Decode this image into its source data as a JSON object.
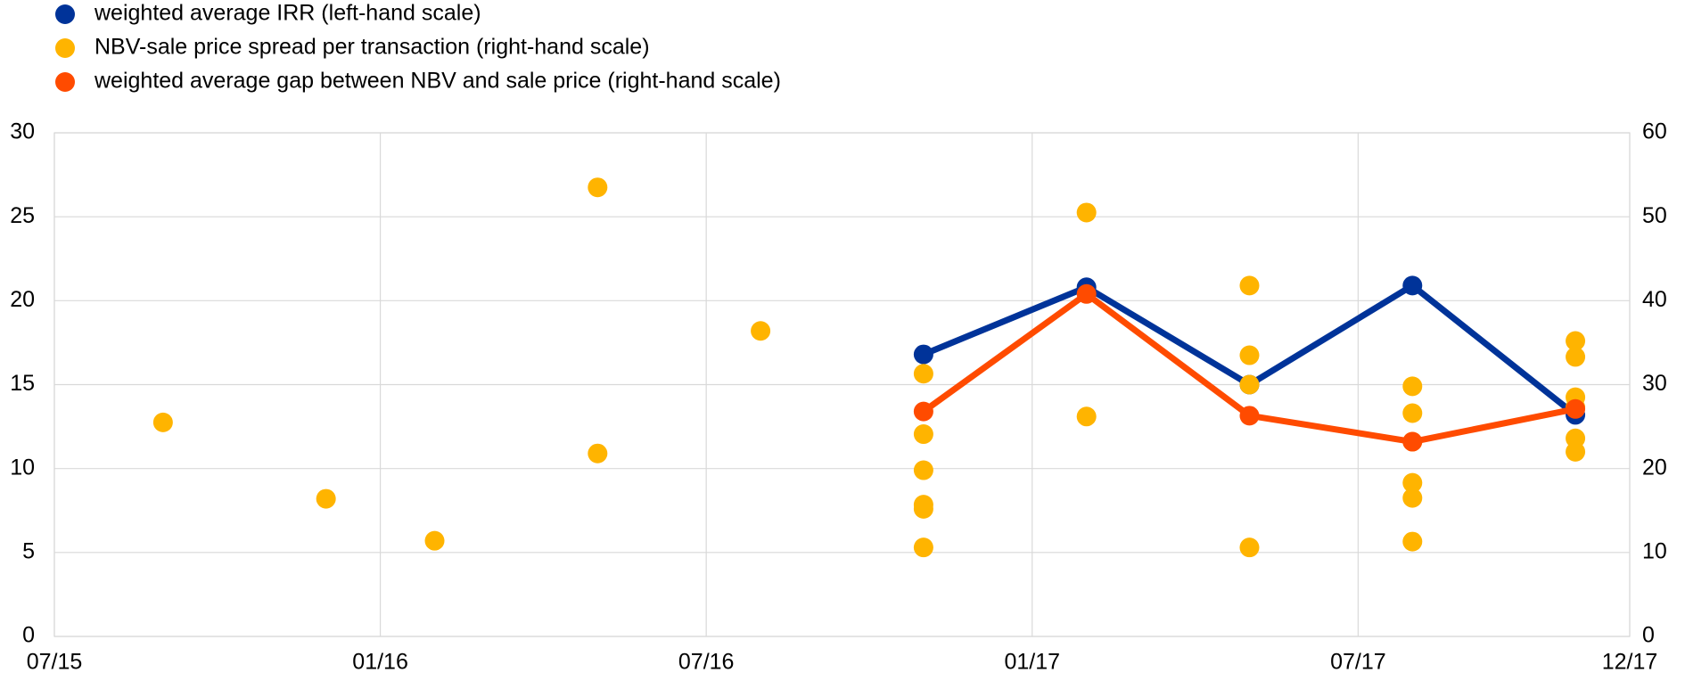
{
  "chart_data": {
    "type": "line",
    "xlim": [
      "2015-07",
      "2017-12"
    ],
    "xticks": [
      {
        "value": "2015-07",
        "label": "07/15"
      },
      {
        "value": "2016-01",
        "label": "01/16"
      },
      {
        "value": "2016-07",
        "label": "07/16"
      },
      {
        "value": "2017-01",
        "label": "01/17"
      },
      {
        "value": "2017-07",
        "label": "07/17"
      },
      {
        "value": "2017-12",
        "label": "12/17"
      }
    ],
    "ylim": [
      0,
      30
    ],
    "yticks": [
      0,
      5,
      10,
      15,
      20,
      25,
      30
    ],
    "y2lim": [
      0,
      60
    ],
    "y2ticks": [
      0,
      10,
      20,
      30,
      40,
      50,
      60
    ],
    "grid": true,
    "legend": "top-left",
    "series": [
      {
        "name": "weighted average IRR (left-hand scale)",
        "color": "#003399",
        "type": "line",
        "x": [
          "2016-11",
          "2017-02",
          "2017-05",
          "2017-08",
          "2017-11"
        ],
        "values": [
          16.8,
          20.8,
          15.0,
          20.9,
          13.2
        ]
      },
      {
        "name": "NBV-sale price spread per transaction (right-hand scale)",
        "color": "#ffb400",
        "type": "scatter",
        "axis": "y2",
        "x": [
          "2015-09",
          "2015-12",
          "2016-02",
          "2016-05",
          "2016-05",
          "2016-08",
          "2016-11",
          "2016-11",
          "2016-11",
          "2016-11",
          "2016-11",
          "2016-11",
          "2017-02",
          "2017-02",
          "2017-05",
          "2017-05",
          "2017-05",
          "2017-05",
          "2017-08",
          "2017-08",
          "2017-08",
          "2017-08",
          "2017-08",
          "2017-08",
          "2017-11",
          "2017-11",
          "2017-11",
          "2017-11",
          "2017-11",
          "2017-11"
        ],
        "values": [
          25.5,
          16.4,
          11.4,
          53.5,
          21.8,
          36.4,
          31.3,
          24.1,
          19.8,
          15.7,
          15.2,
          10.6,
          50.5,
          26.2,
          41.8,
          33.5,
          30.0,
          10.6,
          29.8,
          26.6,
          23.2,
          18.3,
          16.5,
          11.3,
          35.2,
          33.3,
          28.5,
          27.3,
          23.6,
          22.0
        ]
      },
      {
        "name": "weighted average gap between NBV and sale price (right-hand scale)",
        "color": "#ff4b00",
        "type": "line",
        "axis": "y2",
        "x": [
          "2016-11",
          "2017-02",
          "2017-05",
          "2017-08",
          "2017-11"
        ],
        "values": [
          26.8,
          40.8,
          26.3,
          23.2,
          27.1
        ]
      }
    ]
  }
}
